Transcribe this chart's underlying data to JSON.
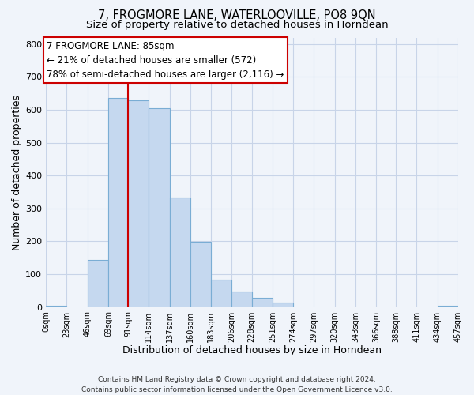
{
  "title": "7, FROGMORE LANE, WATERLOOVILLE, PO8 9QN",
  "subtitle": "Size of property relative to detached houses in Horndean",
  "xlabel": "Distribution of detached houses by size in Horndean",
  "ylabel": "Number of detached properties",
  "footer_line1": "Contains HM Land Registry data © Crown copyright and database right 2024.",
  "footer_line2": "Contains public sector information licensed under the Open Government Licence v3.0.",
  "bin_edges": [
    0,
    23,
    46,
    69,
    91,
    114,
    137,
    160,
    183,
    206,
    228,
    251,
    274,
    297,
    320,
    343,
    366,
    388,
    411,
    434,
    457
  ],
  "bin_labels": [
    "0sqm",
    "23sqm",
    "46sqm",
    "69sqm",
    "91sqm",
    "114sqm",
    "137sqm",
    "160sqm",
    "183sqm",
    "206sqm",
    "228sqm",
    "251sqm",
    "274sqm",
    "297sqm",
    "320sqm",
    "343sqm",
    "366sqm",
    "388sqm",
    "411sqm",
    "434sqm",
    "457sqm"
  ],
  "counts": [
    3,
    0,
    143,
    636,
    630,
    605,
    332,
    199,
    83,
    46,
    27,
    13,
    0,
    0,
    0,
    0,
    0,
    0,
    0,
    3
  ],
  "bar_color": "#c5d8ef",
  "bar_edge_color": "#7aadd4",
  "property_bin_edge": 91,
  "vline_color": "#cc0000",
  "annotation_box_color": "#cc0000",
  "annotation_text_line1": "7 FROGMORE LANE: 85sqm",
  "annotation_text_line2": "← 21% of detached houses are smaller (572)",
  "annotation_text_line3": "78% of semi-detached houses are larger (2,116) →",
  "annotation_fontsize": 8.5,
  "ylim": [
    0,
    820
  ],
  "yticks": [
    0,
    100,
    200,
    300,
    400,
    500,
    600,
    700,
    800
  ],
  "bg_color": "#f0f4fa",
  "grid_color": "#c8d4e8",
  "title_fontsize": 10.5,
  "subtitle_fontsize": 9.5,
  "xlabel_fontsize": 9,
  "ylabel_fontsize": 9,
  "footer_fontsize": 6.5
}
